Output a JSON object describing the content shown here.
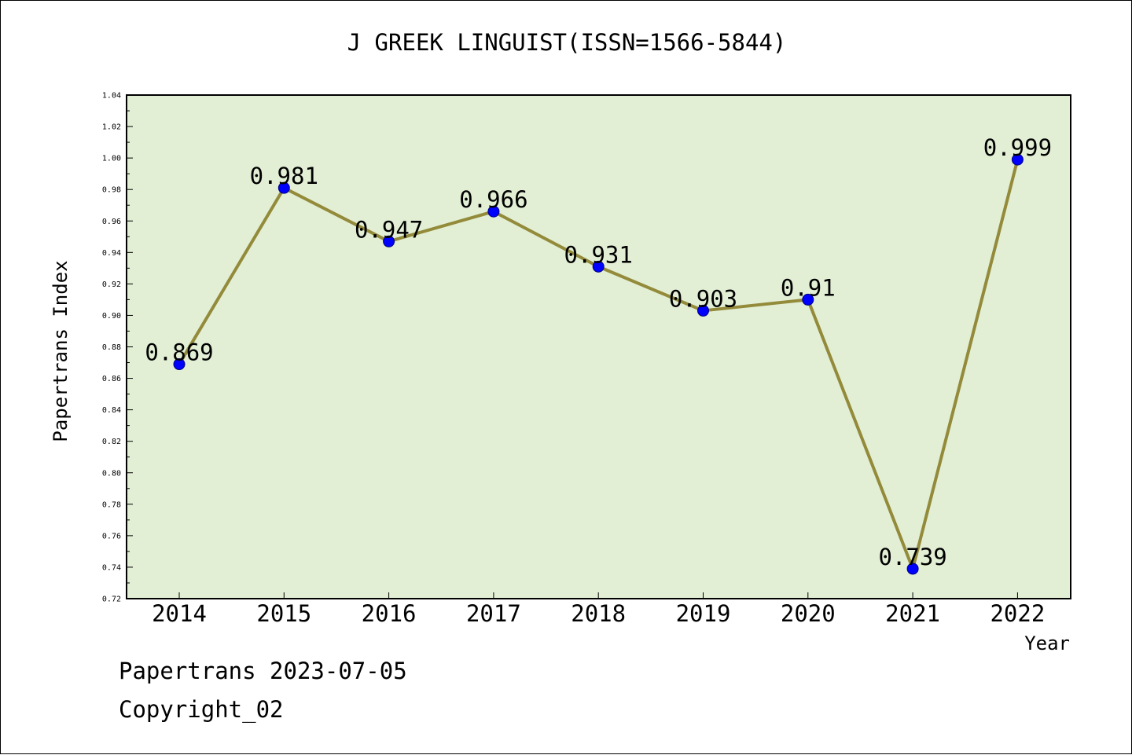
{
  "chart_title": "J GREEK LINGUIST(ISSN=1566-5844)",
  "footer": {
    "line1": "Papertrans 2023-07-05",
    "line2": "Copyright_02"
  },
  "chart_data": {
    "type": "line",
    "title": "J GREEK LINGUIST(ISSN=1566-5844)",
    "xlabel": "Year",
    "ylabel": "Papertrans Index",
    "categories": [
      "2014",
      "2015",
      "2016",
      "2017",
      "2018",
      "2019",
      "2020",
      "2021",
      "2022"
    ],
    "series": [
      {
        "values": [
          0.869,
          0.981,
          0.947,
          0.966,
          0.931,
          0.903,
          0.91,
          0.739,
          0.999
        ],
        "data_labels": [
          "0.869",
          "0.981",
          "0.947",
          "0.966",
          "0.931",
          "0.903",
          "0.91",
          "0.739",
          "0.999"
        ]
      }
    ],
    "ylim": [
      0.72,
      1.04
    ],
    "yticks": [
      "0.72",
      "0.74",
      "0.76",
      "0.78",
      "0.80",
      "0.82",
      "0.84",
      "0.86",
      "0.88",
      "0.90",
      "0.92",
      "0.94",
      "0.96",
      "0.98",
      "1.00",
      "1.02",
      "1.04"
    ],
    "grid": false,
    "legend": "none",
    "colors": {
      "plot_background": "#e2efd5",
      "line": "#938a3a",
      "marker": "#0000ff"
    }
  }
}
